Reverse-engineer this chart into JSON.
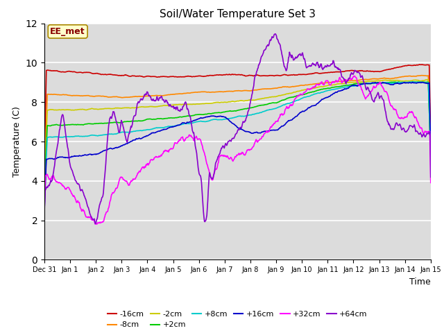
{
  "title": "Soil/Water Temperature Set 3",
  "xlabel": "Time",
  "ylabel": "Temperature (C)",
  "ylim": [
    0,
    12
  ],
  "xlim": [
    0,
    15
  ],
  "xtick_labels": [
    "Dec 31",
    "Jan 1",
    "Jan 2",
    "Jan 3",
    "Jan 4",
    "Jan 5",
    "Jan 6",
    "Jan 7",
    "Jan 8",
    "Jan 9",
    "Jan 10",
    "Jan 11",
    "Jan 12",
    "Jan 13",
    "Jan 14",
    "Jan 15"
  ],
  "ytick_values": [
    0,
    2,
    4,
    6,
    8,
    10,
    12
  ],
  "background_color": "#dcdcdc",
  "annotation_text": "EE_met",
  "annotation_bg": "#ffffcc",
  "annotation_border": "#aa8800",
  "annotation_text_color": "#880000",
  "series": {
    "-16cm": {
      "color": "#cc0000",
      "linewidth": 1.2
    },
    "-8cm": {
      "color": "#ff8800",
      "linewidth": 1.2
    },
    "-2cm": {
      "color": "#cccc00",
      "linewidth": 1.2
    },
    "+2cm": {
      "color": "#00cc00",
      "linewidth": 1.2
    },
    "+8cm": {
      "color": "#00cccc",
      "linewidth": 1.2
    },
    "+16cm": {
      "color": "#0000cc",
      "linewidth": 1.2
    },
    "+32cm": {
      "color": "#ff00ff",
      "linewidth": 1.2
    },
    "+64cm": {
      "color": "#8800cc",
      "linewidth": 1.2
    }
  },
  "legend_order": [
    "-16cm",
    "-8cm",
    "-2cm",
    "+2cm",
    "+8cm",
    "+16cm",
    "+32cm",
    "+64cm"
  ]
}
